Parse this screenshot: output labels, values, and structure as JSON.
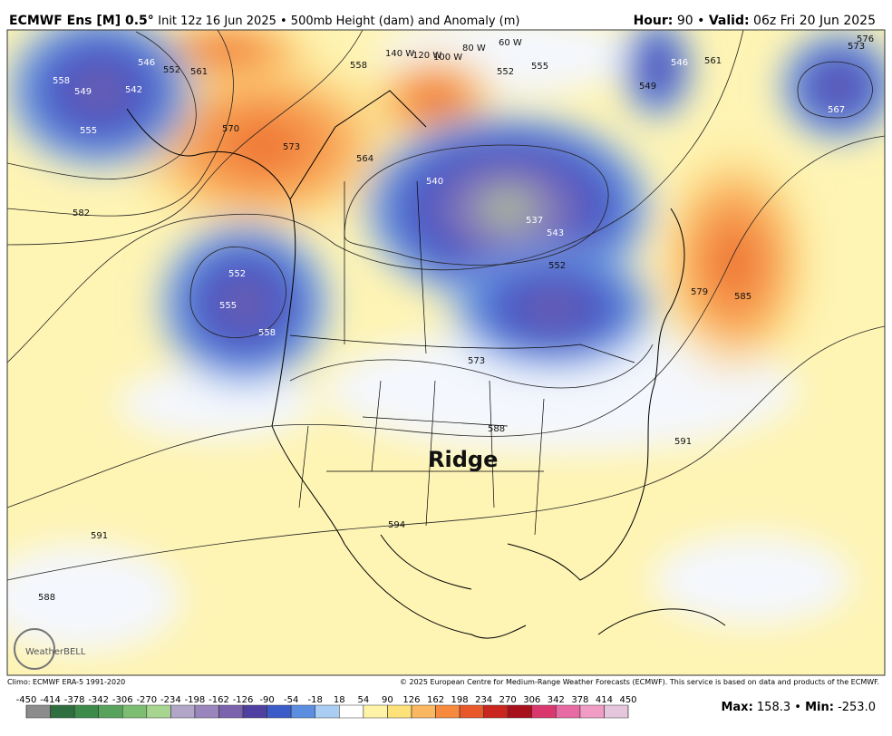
{
  "header": {
    "model": "ECMWF Ens [M] 0.5°",
    "description": "Init 12z 16 Jun 2025 • 500mb Height (dam) and Anomaly (m)",
    "hour_label": "Hour:",
    "hour": "90 •",
    "valid_label": "Valid:",
    "valid": "06z Fri 20 Jun 2025"
  },
  "map": {
    "annotation": "Ridge",
    "contour_labels": [
      "558",
      "549",
      "546",
      "542",
      "552",
      "555",
      "561",
      "558",
      "570",
      "573",
      "582",
      "552",
      "555",
      "558",
      "564",
      "540",
      "537",
      "543",
      "552",
      "573",
      "588",
      "594",
      "591",
      "591",
      "588",
      "585",
      "579",
      "567",
      "573",
      "576",
      "561",
      "546",
      "549",
      "555",
      "552",
      "140 W",
      "120 W",
      "100 W",
      "80 W",
      "60 W"
    ],
    "logo": "WeatherBELL"
  },
  "footer": {
    "climo": "Climo: ECMWF ERA-5 1991-2020",
    "copyright": "© 2025 European Centre for Medium-Range Weather Forecasts (ECMWF). This service is based on data and products of the ECMWF.",
    "max_label": "Max:",
    "max": "158.3 •",
    "min_label": "Min:",
    "min": "-253.0"
  },
  "colorbar": {
    "ticks": [
      -450,
      -414,
      -378,
      -342,
      -306,
      -270,
      -234,
      -198,
      -162,
      -126,
      -90,
      -54,
      -18,
      18,
      54,
      90,
      126,
      162,
      198,
      234,
      270,
      306,
      342,
      378,
      414,
      450
    ],
    "colors": [
      "#8c8c8c",
      "#2f6e3e",
      "#3e8a4a",
      "#58a35c",
      "#7cbd72",
      "#a7d58f",
      "#b2a6c8",
      "#9a86bd",
      "#7b62ad",
      "#4f3fa0",
      "#3b5bc8",
      "#5b8ee0",
      "#a9cdf3",
      "#ffffff",
      "#fff3a8",
      "#fde27a",
      "#fbb860",
      "#f78a3c",
      "#e8582a",
      "#c8261f",
      "#a8101c",
      "#d9386e",
      "#e86aa2",
      "#f09cc4",
      "#e6c6dc"
    ]
  }
}
